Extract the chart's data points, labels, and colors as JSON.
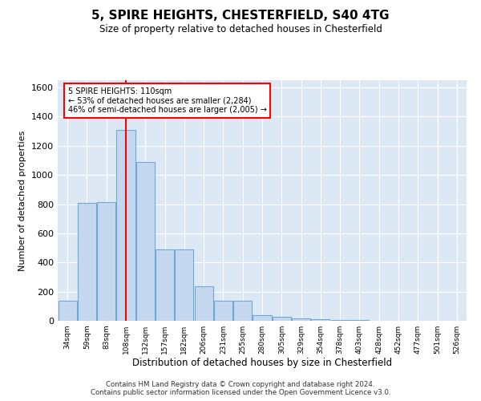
{
  "title": "5, SPIRE HEIGHTS, CHESTERFIELD, S40 4TG",
  "subtitle": "Size of property relative to detached houses in Chesterfield",
  "xlabel": "Distribution of detached houses by size in Chesterfield",
  "ylabel": "Number of detached properties",
  "bar_color": "#c5d8f0",
  "bar_edge_color": "#6aaad4",
  "background_color": "#dde8f5",
  "grid_color": "white",
  "red_line_x": 3,
  "annotation_line1": "5 SPIRE HEIGHTS: 110sqm",
  "annotation_line2": "← 53% of detached houses are smaller (2,284)",
  "annotation_line3": "46% of semi-detached houses are larger (2,005) →",
  "footer": "Contains HM Land Registry data © Crown copyright and database right 2024.\nContains public sector information licensed under the Open Government Licence v3.0.",
  "bin_labels": [
    "34sqm",
    "59sqm",
    "83sqm",
    "108sqm",
    "132sqm",
    "157sqm",
    "182sqm",
    "206sqm",
    "231sqm",
    "255sqm",
    "280sqm",
    "305sqm",
    "329sqm",
    "354sqm",
    "378sqm",
    "403sqm",
    "428sqm",
    "452sqm",
    "477sqm",
    "501sqm",
    "526sqm"
  ],
  "counts": [
    140,
    810,
    815,
    1310,
    1090,
    490,
    490,
    235,
    135,
    135,
    40,
    25,
    15,
    10,
    5,
    5,
    2,
    2,
    2,
    2,
    2
  ],
  "ylim": [
    0,
    1650
  ],
  "yticks": [
    0,
    200,
    400,
    600,
    800,
    1000,
    1200,
    1400,
    1600
  ]
}
